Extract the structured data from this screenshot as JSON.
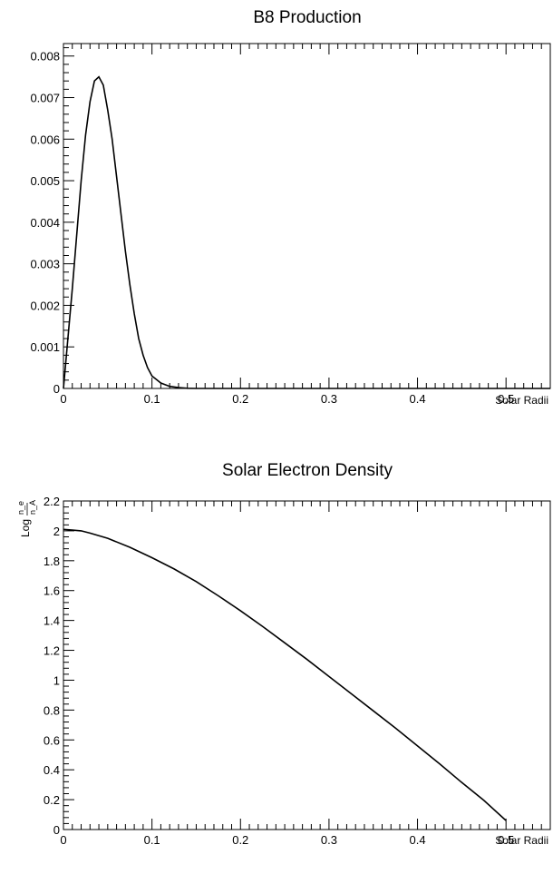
{
  "chart_data": [
    {
      "type": "line",
      "title": "B8 Production",
      "xlabel": "Solar Radii",
      "ylabel": "",
      "xlim": [
        0,
        0.55
      ],
      "ylim": [
        0,
        0.0083
      ],
      "x_ticks": [
        0,
        0.1,
        0.2,
        0.3,
        0.4,
        0.5
      ],
      "x_tick_labels": [
        "0",
        "0.1",
        "0.2",
        "0.3",
        "0.4",
        "0.5"
      ],
      "y_ticks": [
        0,
        0.001,
        0.002,
        0.003,
        0.004,
        0.005,
        0.006,
        0.007,
        0.008
      ],
      "y_tick_labels": [
        "0",
        "0.001",
        "0.002",
        "0.003",
        "0.004",
        "0.005",
        "0.006",
        "0.007",
        "0.008"
      ],
      "grid": false,
      "series": [
        {
          "x": [
            0,
            0.005,
            0.01,
            0.015,
            0.02,
            0.025,
            0.03,
            0.035,
            0.04,
            0.045,
            0.05,
            0.055,
            0.06,
            0.065,
            0.07,
            0.075,
            0.08,
            0.085,
            0.09,
            0.095,
            0.1,
            0.11,
            0.12,
            0.13,
            0.14,
            0.15,
            0.2,
            0.3,
            0.4,
            0.5,
            0.55
          ],
          "values": [
            0,
            0.0012,
            0.0024,
            0.0037,
            0.005,
            0.0061,
            0.0069,
            0.0074,
            0.0075,
            0.0073,
            0.0067,
            0.006,
            0.0051,
            0.0042,
            0.0033,
            0.0025,
            0.0018,
            0.0012,
            0.0008,
            0.0005,
            0.0003,
            0.00013,
            5e-05,
            2e-05,
            5e-06,
            0,
            0,
            0,
            0,
            0,
            0
          ]
        }
      ]
    },
    {
      "type": "line",
      "title": "Solar Electron Density",
      "xlabel": "Solar Radii",
      "ylabel": "Log",
      "ylabel_fraction": {
        "numerator": "n_e",
        "denominator": "n_A"
      },
      "xlim": [
        0,
        0.55
      ],
      "ylim": [
        0,
        2.2
      ],
      "x_ticks": [
        0,
        0.1,
        0.2,
        0.3,
        0.4,
        0.5
      ],
      "x_tick_labels": [
        "0",
        "0.1",
        "0.2",
        "0.3",
        "0.4",
        "0.5"
      ],
      "y_ticks": [
        0,
        0.2,
        0.4,
        0.6,
        0.8,
        1,
        1.2,
        1.4,
        1.6,
        1.8,
        2,
        2.2
      ],
      "y_tick_labels": [
        "0",
        "0.2",
        "0.4",
        "0.6",
        "0.8",
        "1",
        "1.2",
        "1.4",
        "1.6",
        "1.8",
        "2",
        "2.2"
      ],
      "grid": false,
      "series": [
        {
          "x": [
            0,
            0.01,
            0.02,
            0.03,
            0.05,
            0.075,
            0.1,
            0.125,
            0.15,
            0.175,
            0.2,
            0.225,
            0.25,
            0.275,
            0.3,
            0.325,
            0.35,
            0.375,
            0.4,
            0.425,
            0.45,
            0.475,
            0.5
          ],
          "values": [
            2.01,
            2.005,
            2.0,
            1.985,
            1.95,
            1.89,
            1.82,
            1.745,
            1.66,
            1.565,
            1.465,
            1.36,
            1.25,
            1.14,
            1.025,
            0.91,
            0.795,
            0.68,
            0.56,
            0.44,
            0.315,
            0.195,
            0.06
          ]
        }
      ]
    }
  ]
}
